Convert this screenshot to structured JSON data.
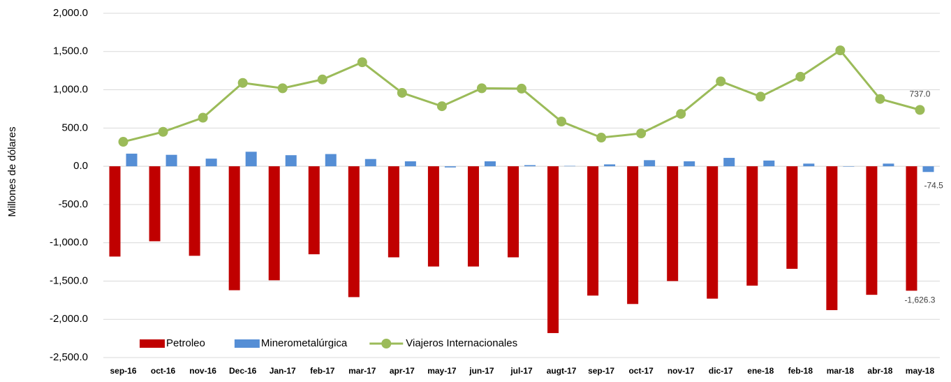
{
  "chart_data": {
    "type": "bar_line",
    "y_label": "Millones de dólares",
    "categories": [
      "sep-16",
      "oct-16",
      "nov-16",
      "Dec-16",
      "Jan-17",
      "feb-17",
      "mar-17",
      "apr-17",
      "may-17",
      "jun-17",
      "jul-17",
      "augt-17",
      "sep-17",
      "oct-17",
      "nov-17",
      "dic-17",
      "ene-18",
      "feb-18",
      "mar-18",
      "abr-18",
      "may-18"
    ],
    "series": [
      {
        "name": "Petroleo",
        "type": "bar",
        "color": "#c00000",
        "values": [
          -1180,
          -980,
          -1170,
          -1620,
          -1490,
          -1150,
          -1710,
          -1190,
          -1310,
          -1310,
          -1190,
          -2180,
          -1690,
          -1800,
          -1500,
          -1730,
          -1560,
          -1340,
          -1880,
          -1680,
          -1626.3
        ],
        "value_labels": [
          null,
          null,
          null,
          null,
          null,
          null,
          null,
          null,
          null,
          null,
          null,
          null,
          null,
          null,
          null,
          null,
          null,
          null,
          null,
          null,
          "-1,626.3"
        ]
      },
      {
        "name": "Minerometalúrgica",
        "type": "bar",
        "color": "#558ed5",
        "values": [
          165,
          150,
          100,
          190,
          145,
          160,
          95,
          65,
          -15,
          65,
          15,
          5,
          25,
          80,
          65,
          110,
          75,
          35,
          -5,
          35,
          -74.5
        ],
        "value_labels": [
          null,
          null,
          null,
          null,
          null,
          null,
          null,
          null,
          null,
          null,
          null,
          null,
          null,
          null,
          null,
          null,
          null,
          null,
          null,
          null,
          "-74.5"
        ]
      },
      {
        "name": "Viajeros Internacionales",
        "type": "line",
        "color": "#9bbb59",
        "values": [
          320,
          450,
          635,
          1090,
          1020,
          1135,
          1360,
          960,
          785,
          1020,
          1015,
          585,
          375,
          430,
          685,
          1110,
          910,
          1170,
          1515,
          880,
          737.0
        ],
        "value_labels": [
          null,
          null,
          null,
          null,
          null,
          null,
          null,
          null,
          null,
          null,
          null,
          null,
          null,
          null,
          null,
          null,
          null,
          null,
          null,
          null,
          "737.0"
        ]
      }
    ],
    "ylim": [
      -2500,
      2000
    ],
    "yticks": [
      {
        "value": 2000,
        "label": "2,000.0"
      },
      {
        "value": 1500,
        "label": "1,500.0"
      },
      {
        "value": 1000,
        "label": "1,000.0"
      },
      {
        "value": 500,
        "label": "500.0"
      },
      {
        "value": 0,
        "label": "0.0"
      },
      {
        "value": -500,
        "label": "-500.0"
      },
      {
        "value": -1000,
        "label": "-1,000.0"
      },
      {
        "value": -1500,
        "label": "-1,500.0"
      },
      {
        "value": -2000,
        "label": "-2,000.0"
      },
      {
        "value": -2500,
        "label": "-2,500.0"
      }
    ],
    "grid": true,
    "legend": "bottom-left"
  }
}
